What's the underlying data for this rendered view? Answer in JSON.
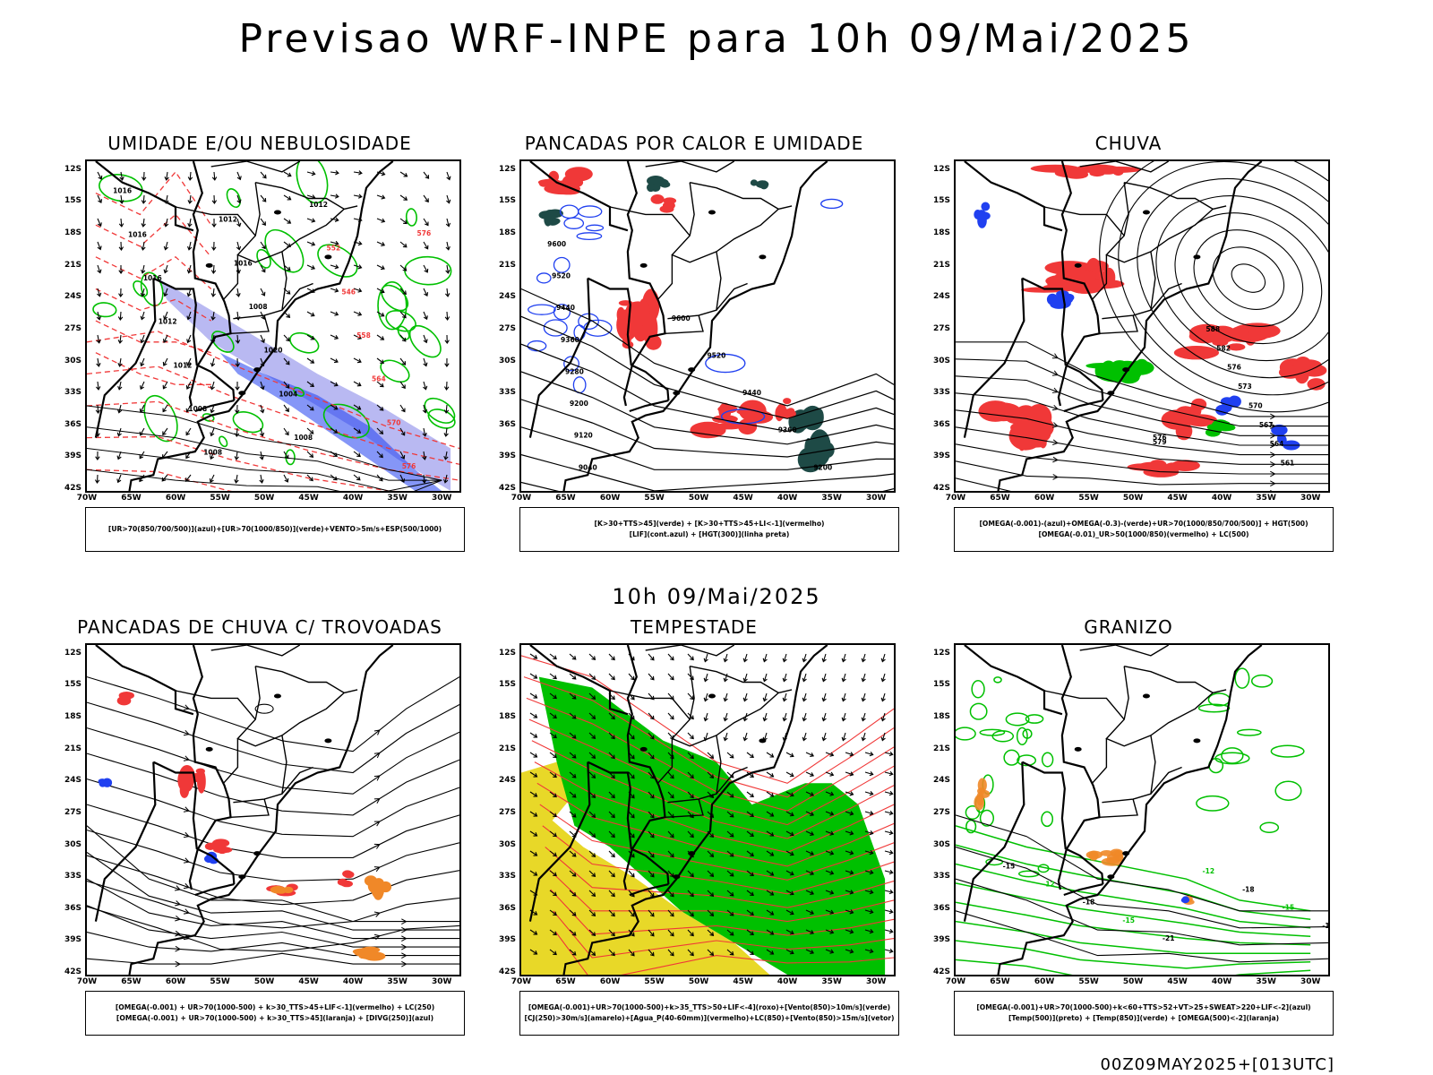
{
  "main_title": "Previsao WRF-INPE  para 10h 09/Mai/2025",
  "mid_title": "10h 09/Mai/2025",
  "footer": "00Z09MAY2025+[013UTC]",
  "lat_labels": [
    "12S",
    "15S",
    "18S",
    "21S",
    "24S",
    "27S",
    "30S",
    "33S",
    "36S",
    "39S",
    "42S"
  ],
  "lon_labels": [
    "70W",
    "65W",
    "60W",
    "55W",
    "50W",
    "45W",
    "40W",
    "35W",
    "30W"
  ],
  "colors": {
    "red": "#f03838",
    "green": "#00c000",
    "blue": "#2040f0",
    "purple": "#8080e8",
    "dkgreen": "#1e4a46",
    "yellow": "#e8d828",
    "orange": "#f08828"
  },
  "panels": [
    {
      "id": "umidade",
      "title": "UMIDADE E/OU NEBULOSIDADE",
      "legend": [
        "[UR>70(850/700/500)](azul)+[UR>70(1000/850)](verde)+VENTO>5m/s+ESP(500/1000)"
      ],
      "contour_labels": [
        "1016",
        "1016",
        "1016",
        "1012",
        "1012",
        "1008",
        "1008",
        "1012",
        "1016",
        "1008",
        "1020",
        "1004",
        "1008",
        "1012",
        "552",
        "546",
        "558",
        "564",
        "570",
        "576",
        "576"
      ]
    },
    {
      "id": "pancadas",
      "title": "PANCADAS POR CALOR E UMIDADE",
      "legend": [
        "[K>30+TTS>45](verde) + [K>30+TTS>45+LI<-1](vermelho)",
        "[LIF](cont.azul) + [HGT(300)](linha preta)"
      ],
      "contour_labels": [
        "9600",
        "9520",
        "9440",
        "9360",
        "9280",
        "9200",
        "9120",
        "9040",
        "9600",
        "9520",
        "9440",
        "9360",
        "9200"
      ]
    },
    {
      "id": "chuva",
      "title": "CHUVA",
      "legend": [
        "[OMEGA(-0.001)-(azul)+OMEGA(-0.3)-(verde)+UR>70(1000/850/700/500)] + HGT(500)",
        "[OMEGA(-0.01)_UR>50(1000/850)(vermelho) + LC(500)"
      ],
      "contour_labels": [
        "588",
        "582",
        "576",
        "573",
        "570",
        "567",
        "564",
        "561",
        "576",
        "579"
      ]
    },
    {
      "id": "trovoadas",
      "title": "PANCADAS DE CHUVA C/ TROVOADAS",
      "legend": [
        "[OMEGA(-0.001) + UR>70(1000-500) + k>30_TTS>45+LIF<-1](vermelho) + LC(250)",
        "[OMEGA(-0.001) + UR>70(1000-500) + k>30_TTS>45](laranja) + [DIVG(250)](azul)"
      ],
      "contour_labels": []
    },
    {
      "id": "tempestade",
      "title": "TEMPESTADE",
      "legend": [
        "[OMEGA(-0.001)+UR>70(1000-500)+k>35_TTS>50+LIF<-4](roxo)+[Vento(850)>10m/s](verde)",
        "[CJ(250)>30m/s](amarelo)+[Agua_P(40-60mm)](vermelho)+LC(850)+[Vento(850)>15m/s](vetor)"
      ],
      "contour_labels": []
    },
    {
      "id": "granizo",
      "title": "GRANIZO",
      "legend": [
        "[OMEGA(-0.001)+UR>70(1000-500)+k<60+TTS>52+VT>25+SWEAT>220+LIF<-2](azul)",
        "[Temp(500)](preto) + [Temp(850)](verde) + [OMEGA(500)<-2](laranja)"
      ],
      "contour_labels": [
        "-15",
        "-12",
        "-18",
        "-15",
        "-21",
        "-12",
        "-18",
        "-15",
        "-12"
      ]
    }
  ]
}
